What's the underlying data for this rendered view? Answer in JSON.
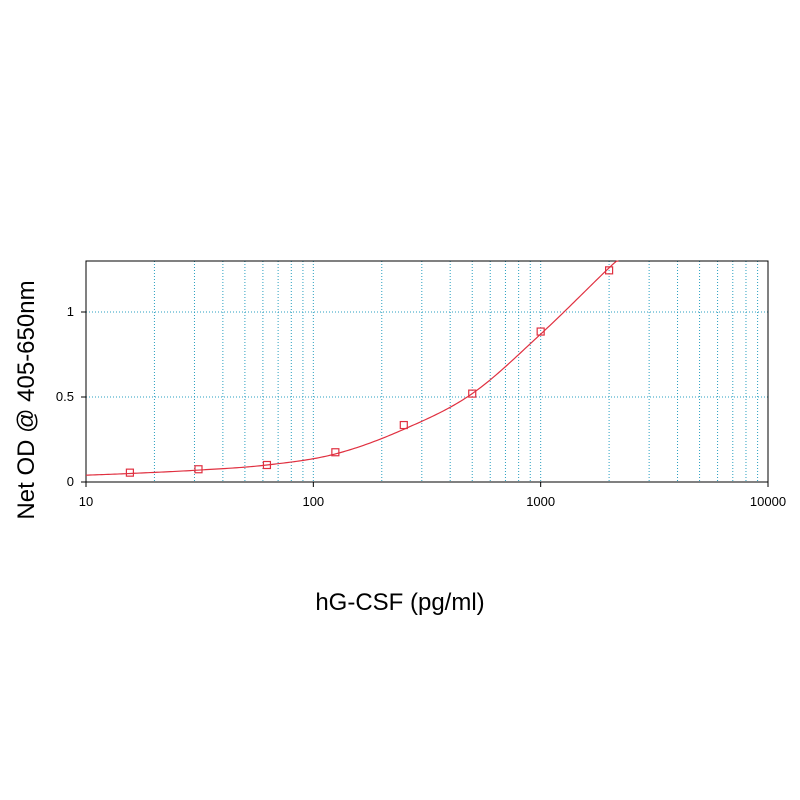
{
  "chart_data": {
    "type": "scatter",
    "xlabel": "hG-CSF (pg/ml)",
    "ylabel": "Net OD @ 405-650nm",
    "x_scale": "log",
    "xlim": [
      10,
      10000
    ],
    "ylim": [
      0,
      1.3
    ],
    "x_ticks": [
      10,
      100,
      1000,
      10000
    ],
    "x_tick_labels": [
      "10",
      "100",
      "1000",
      "10000"
    ],
    "y_ticks": [
      0,
      0.5,
      1
    ],
    "y_tick_labels": [
      "0",
      "0.5",
      "1"
    ],
    "grid": true,
    "series": [
      {
        "x": [
          15.6,
          31.25,
          62.5,
          125,
          250,
          500,
          1000,
          2000
        ],
        "y": [
          0.055,
          0.075,
          0.1,
          0.175,
          0.335,
          0.52,
          0.885,
          1.245
        ]
      }
    ],
    "fit_curve": {
      "x": [
        10,
        15.6,
        31.25,
        62.5,
        125,
        250,
        500,
        1000,
        2000,
        2200
      ],
      "y": [
        0.04,
        0.05,
        0.07,
        0.1,
        0.165,
        0.31,
        0.52,
        0.87,
        1.26,
        1.31
      ]
    },
    "colors": {
      "series": "#e03040",
      "grid": "#2a9fc0",
      "axis": "#000000"
    }
  }
}
